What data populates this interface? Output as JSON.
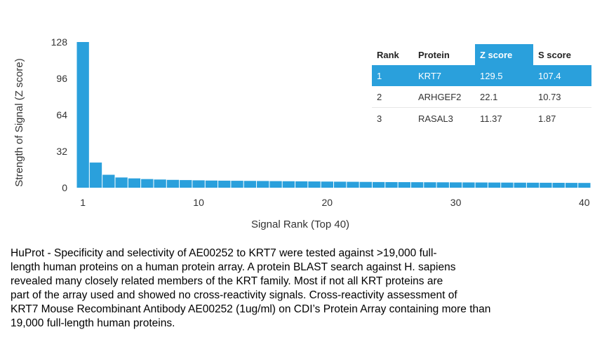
{
  "chart_data": {
    "type": "bar",
    "xlabel": "Signal Rank (Top 40)",
    "ylabel": "Strength of Signal (Z score)",
    "ylim": [
      0,
      128
    ],
    "xlim": [
      1,
      40
    ],
    "y_ticks": [
      0,
      32,
      64,
      96,
      128
    ],
    "x_ticks": [
      1,
      10,
      20,
      30,
      40
    ],
    "x": [
      1,
      2,
      3,
      4,
      5,
      6,
      7,
      8,
      9,
      10,
      11,
      12,
      13,
      14,
      15,
      16,
      17,
      18,
      19,
      20,
      21,
      22,
      23,
      24,
      25,
      26,
      27,
      28,
      29,
      30,
      31,
      32,
      33,
      34,
      35,
      36,
      37,
      38,
      39,
      40
    ],
    "values": [
      129.5,
      22.1,
      11.37,
      9.0,
      8.2,
      7.6,
      7.2,
      6.9,
      6.7,
      6.5,
      6.3,
      6.2,
      6.1,
      6.0,
      5.9,
      5.8,
      5.7,
      5.6,
      5.5,
      5.4,
      5.3,
      5.2,
      5.1,
      5.0,
      4.95,
      4.9,
      4.85,
      4.8,
      4.75,
      4.7,
      4.65,
      4.6,
      4.55,
      4.5,
      4.45,
      4.4,
      4.35,
      4.3,
      4.25,
      4.2
    ],
    "bar_color": "#2aa0dc",
    "grid": false
  },
  "table": {
    "headers": [
      "Rank",
      "Protein",
      "Z score",
      "S score"
    ],
    "rows": [
      [
        "1",
        "KRT7",
        "129.5",
        "107.4"
      ],
      [
        "2",
        "ARHGEF2",
        "22.1",
        "10.73"
      ],
      [
        "3",
        "RASAL3",
        "11.37",
        "1.87"
      ]
    ],
    "highlight_color": "#2aa0dc"
  },
  "caption": {
    "lines": [
      "HuProt  -  Specificity and selectivity of AE00252 to KRT7 were tested against >19,000 full-",
      "length human proteins on a human protein array. A protein BLAST search against H. sapiens",
      "revealed many closely related members of the KRT family. Most if not all KRT proteins are",
      "part of the array used and showed no cross-reactivity signals. Cross-reactivity assessment of",
      "KRT7 Mouse Recombinant Antibody AE00252 (1ug/ml) on CDI’s Protein Array containing more than",
      "19,000 full-length human proteins."
    ]
  }
}
